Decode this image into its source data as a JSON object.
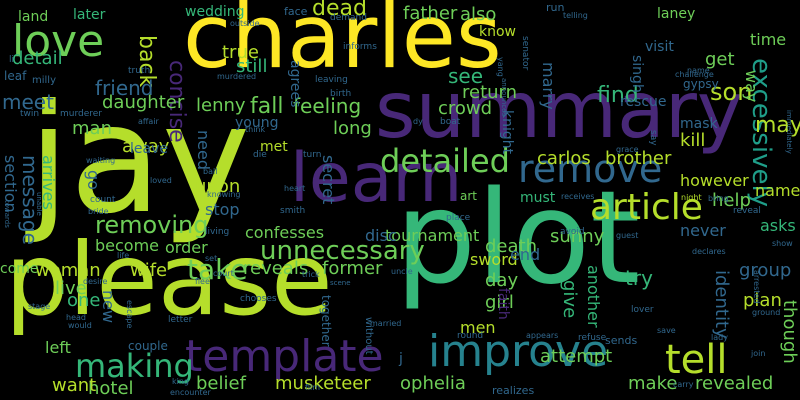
{
  "palette": [
    "#fde725",
    "#b5de2b",
    "#6ece58",
    "#35b779",
    "#1f9e89",
    "#26828e",
    "#31688e",
    "#3e4989",
    "#482878",
    "#440154"
  ],
  "words": [
    {
      "text": "jay",
      "color": "#b5de2b"
    },
    {
      "text": "plot",
      "color": "#35b779"
    },
    {
      "text": "charles",
      "color": "#fde725"
    },
    {
      "text": "please",
      "color": "#b5de2b"
    },
    {
      "text": "summary",
      "color": "#482878"
    },
    {
      "text": "learn",
      "color": "#482878"
    },
    {
      "text": "love",
      "color": "#6ece58"
    },
    {
      "text": "improve",
      "color": "#26828e"
    },
    {
      "text": "template",
      "color": "#482878"
    },
    {
      "text": "article",
      "color": "#b5de2b"
    },
    {
      "text": "remove",
      "color": "#31688e"
    },
    {
      "text": "detailed",
      "color": "#6ece58"
    },
    {
      "text": "tell",
      "color": "#b5de2b"
    },
    {
      "text": "making",
      "color": "#35b779"
    },
    {
      "text": "excessively",
      "color": "#1f9e89"
    },
    {
      "text": "back",
      "color": "#b5de2b"
    },
    {
      "text": "concise",
      "color": "#482878"
    },
    {
      "text": "unnecessary",
      "color": "#6ece58"
    },
    {
      "text": "removing",
      "color": "#6ece58"
    },
    {
      "text": "take",
      "color": "#6ece58"
    },
    {
      "text": "dead",
      "color": "#b5de2b"
    },
    {
      "text": "detail",
      "color": "#35b779"
    },
    {
      "text": "friend",
      "color": "#31688e"
    },
    {
      "text": "meet",
      "color": "#31688e"
    },
    {
      "text": "daughter",
      "color": "#6ece58"
    },
    {
      "text": "son",
      "color": "#b5de2b"
    },
    {
      "text": "may",
      "color": "#b5de2b"
    },
    {
      "text": "find",
      "color": "#35b779"
    },
    {
      "text": "see",
      "color": "#35b779"
    },
    {
      "text": "crowd",
      "color": "#6ece58"
    },
    {
      "text": "return",
      "color": "#6ece58"
    },
    {
      "text": "fall",
      "color": "#6ece58"
    },
    {
      "text": "feeling",
      "color": "#6ece58"
    },
    {
      "text": "lenny",
      "color": "#6ece58"
    },
    {
      "text": "message",
      "color": "#31688e"
    },
    {
      "text": "section",
      "color": "#31688e"
    },
    {
      "text": "arrives",
      "color": "#35b779"
    },
    {
      "text": "carlos",
      "color": "#b5de2b"
    },
    {
      "text": "brother",
      "color": "#b5de2b"
    },
    {
      "text": "however",
      "color": "#b5de2b"
    },
    {
      "text": "named",
      "color": "#b5de2b"
    },
    {
      "text": "kill",
      "color": "#b5de2b"
    },
    {
      "text": "help",
      "color": "#6ece58"
    },
    {
      "text": "stop",
      "color": "#31688e"
    },
    {
      "text": "upon",
      "color": "#b5de2b"
    },
    {
      "text": "become",
      "color": "#6ece58"
    },
    {
      "text": "order",
      "color": "#6ece58"
    },
    {
      "text": "woman",
      "color": "#b5de2b"
    },
    {
      "text": "wife",
      "color": "#b5de2b"
    },
    {
      "text": "live",
      "color": "#6ece58"
    },
    {
      "text": "reveals",
      "color": "#6ece58"
    },
    {
      "text": "former",
      "color": "#6ece58"
    },
    {
      "text": "musketeer",
      "color": "#b5de2b"
    },
    {
      "text": "ophelia",
      "color": "#6ece58"
    },
    {
      "text": "attempt",
      "color": "#6ece58"
    },
    {
      "text": "make",
      "color": "#6ece58"
    },
    {
      "text": "revealed",
      "color": "#6ece58"
    },
    {
      "text": "plan",
      "color": "#b5de2b"
    },
    {
      "text": "group",
      "color": "#31688e"
    },
    {
      "text": "asks",
      "color": "#35b779"
    },
    {
      "text": "identity",
      "color": "#31688e"
    },
    {
      "text": "though",
      "color": "#6ece58"
    },
    {
      "text": "death",
      "color": "#6ece58"
    },
    {
      "text": "tournament",
      "color": "#6ece58"
    },
    {
      "text": "sword",
      "color": "#b5de2b"
    },
    {
      "text": "sunny",
      "color": "#6ece58"
    },
    {
      "text": "girl",
      "color": "#6ece58"
    },
    {
      "text": "day",
      "color": "#6ece58"
    },
    {
      "text": "try",
      "color": "#35b779"
    },
    {
      "text": "give",
      "color": "#35b779"
    },
    {
      "text": "another",
      "color": "#35b779"
    },
    {
      "text": "men",
      "color": "#b5de2b"
    },
    {
      "text": "confesses",
      "color": "#6ece58"
    },
    {
      "text": "secret",
      "color": "#31688e"
    },
    {
      "text": "long",
      "color": "#6ece58"
    },
    {
      "text": "need",
      "color": "#31688e"
    },
    {
      "text": "away",
      "color": "#b5de2b"
    },
    {
      "text": "man",
      "color": "#6ece58"
    },
    {
      "text": "go",
      "color": "#31688e"
    },
    {
      "text": "hotel",
      "color": "#6ece58"
    },
    {
      "text": "belief",
      "color": "#6ece58"
    },
    {
      "text": "want",
      "color": "#b5de2b"
    },
    {
      "text": "left",
      "color": "#6ece58"
    },
    {
      "text": "one",
      "color": "#35b779"
    },
    {
      "text": "new",
      "color": "#31688e"
    },
    {
      "text": "come",
      "color": "#6ece58"
    },
    {
      "text": "land",
      "color": "#6ece58"
    },
    {
      "text": "later",
      "color": "#35b779"
    },
    {
      "text": "wedding",
      "color": "#35b779"
    },
    {
      "text": "father",
      "color": "#6ece58"
    },
    {
      "text": "also",
      "color": "#6ece58"
    },
    {
      "text": "laney",
      "color": "#6ece58"
    },
    {
      "text": "true",
      "color": "#b5de2b"
    },
    {
      "text": "still",
      "color": "#35b779"
    },
    {
      "text": "marry",
      "color": "#31688e"
    },
    {
      "text": "knight",
      "color": "#31688e"
    },
    {
      "text": "rescue",
      "color": "#31688e"
    },
    {
      "text": "time",
      "color": "#6ece58"
    },
    {
      "text": "way",
      "color": "#6ece58"
    },
    {
      "text": "get",
      "color": "#6ece58"
    },
    {
      "text": "mask",
      "color": "#31688e"
    },
    {
      "text": "visit",
      "color": "#31688e"
    },
    {
      "text": "singh",
      "color": "#31688e"
    },
    {
      "text": "know",
      "color": "#b5de2b"
    },
    {
      "text": "young",
      "color": "#31688e"
    },
    {
      "text": "met",
      "color": "#b5de2b"
    },
    {
      "text": "agrees",
      "color": "#31688e"
    },
    {
      "text": "leave",
      "color": "#31688e"
    },
    {
      "text": "never",
      "color": "#31688e"
    },
    {
      "text": "end",
      "color": "#31688e"
    },
    {
      "text": "faith",
      "color": "#482878"
    },
    {
      "text": "must",
      "color": "#35b779"
    },
    {
      "text": "art",
      "color": "#6ece58"
    },
    {
      "text": "disc",
      "color": "#31688e"
    },
    {
      "text": "together",
      "color": "#31688e"
    },
    {
      "text": "couple",
      "color": "#31688e"
    },
    {
      "text": "sends",
      "color": "#31688e"
    },
    {
      "text": "realizes",
      "color": "#31688e"
    },
    {
      "text": "gypsy",
      "color": "#31688e"
    },
    {
      "text": "milly",
      "color": "#31688e"
    },
    {
      "text": "leaf",
      "color": "#31688e"
    },
    {
      "text": "murderer",
      "color": "#31688e"
    },
    {
      "text": "face",
      "color": "#31688e"
    },
    {
      "text": "demand",
      "color": "#31688e"
    },
    {
      "text": "outside",
      "color": "#31688e"
    },
    {
      "text": "informs",
      "color": "#31688e"
    },
    {
      "text": "truth",
      "color": "#31688e"
    },
    {
      "text": "murdered",
      "color": "#31688e"
    },
    {
      "text": "birth",
      "color": "#31688e"
    },
    {
      "text": "boat",
      "color": "#31688e"
    },
    {
      "text": "challenge",
      "color": "#31688e"
    },
    {
      "text": "name",
      "color": "#31688e"
    },
    {
      "text": "run",
      "color": "#31688e"
    },
    {
      "text": "telling",
      "color": "#31688e"
    },
    {
      "text": "senator",
      "color": "#31688e"
    },
    {
      "text": "announces",
      "color": "#31688e"
    },
    {
      "text": "yang",
      "color": "#31688e"
    },
    {
      "text": "leaving",
      "color": "#31688e"
    },
    {
      "text": "twin",
      "color": "#31688e"
    },
    {
      "text": "affair",
      "color": "#31688e"
    },
    {
      "text": "think",
      "color": "#31688e"
    },
    {
      "text": "die",
      "color": "#31688e"
    },
    {
      "text": "turn",
      "color": "#31688e"
    },
    {
      "text": "dy",
      "color": "#31688e"
    },
    {
      "text": "say",
      "color": "#31688e"
    },
    {
      "text": "grace",
      "color": "#31688e"
    },
    {
      "text": "immediately",
      "color": "#31688e"
    },
    {
      "text": "waiting",
      "color": "#31688e"
    },
    {
      "text": "loved",
      "color": "#31688e"
    },
    {
      "text": "ball",
      "color": "#31688e"
    },
    {
      "text": "heart",
      "color": "#31688e"
    },
    {
      "text": "night",
      "color": "#b5de2b"
    },
    {
      "text": "bring",
      "color": "#31688e"
    },
    {
      "text": "count",
      "color": "#31688e"
    },
    {
      "text": "bride",
      "color": "#31688e"
    },
    {
      "text": "knowing",
      "color": "#31688e"
    },
    {
      "text": "smith",
      "color": "#31688e"
    },
    {
      "text": "receives",
      "color": "#31688e"
    },
    {
      "text": "reveal",
      "color": "#31688e"
    },
    {
      "text": "towards",
      "color": "#31688e"
    },
    {
      "text": "unable",
      "color": "#31688e"
    },
    {
      "text": "living",
      "color": "#31688e"
    },
    {
      "text": "place",
      "color": "#31688e"
    },
    {
      "text": "avoid",
      "color": "#31688e"
    },
    {
      "text": "guest",
      "color": "#31688e"
    },
    {
      "text": "declares",
      "color": "#31688e"
    },
    {
      "text": "show",
      "color": "#31688e"
    },
    {
      "text": "life",
      "color": "#31688e"
    },
    {
      "text": "set",
      "color": "#31688e"
    },
    {
      "text": "court",
      "color": "#31688e"
    },
    {
      "text": "uncle",
      "color": "#31688e"
    },
    {
      "text": "arrested",
      "color": "#31688e"
    },
    {
      "text": "desire",
      "color": "#31688e"
    },
    {
      "text": "flee",
      "color": "#31688e"
    },
    {
      "text": "chooses",
      "color": "#31688e"
    },
    {
      "text": "stage",
      "color": "#31688e"
    },
    {
      "text": "escape",
      "color": "#31688e"
    },
    {
      "text": "head",
      "color": "#31688e"
    },
    {
      "text": "letter",
      "color": "#31688e"
    },
    {
      "text": "would",
      "color": "#31688e"
    },
    {
      "text": "without",
      "color": "#31688e"
    },
    {
      "text": "married",
      "color": "#31688e"
    },
    {
      "text": "round",
      "color": "#31688e"
    },
    {
      "text": "refuse",
      "color": "#31688e"
    },
    {
      "text": "appears",
      "color": "#31688e"
    },
    {
      "text": "save",
      "color": "#31688e"
    },
    {
      "text": "lover",
      "color": "#31688e"
    },
    {
      "text": "ground",
      "color": "#31688e"
    },
    {
      "text": "lady",
      "color": "#31688e"
    },
    {
      "text": "join",
      "color": "#31688e"
    },
    {
      "text": "king",
      "color": "#31688e"
    },
    {
      "text": "encounter",
      "color": "#31688e"
    },
    {
      "text": "film",
      "color": "#31688e"
    },
    {
      "text": "carry",
      "color": "#31688e"
    },
    {
      "text": "trick",
      "color": "#31688e"
    },
    {
      "text": "scene",
      "color": "#31688e"
    },
    {
      "text": "li",
      "color": "#31688e"
    },
    {
      "text": "j",
      "color": "#31688e"
    }
  ]
}
